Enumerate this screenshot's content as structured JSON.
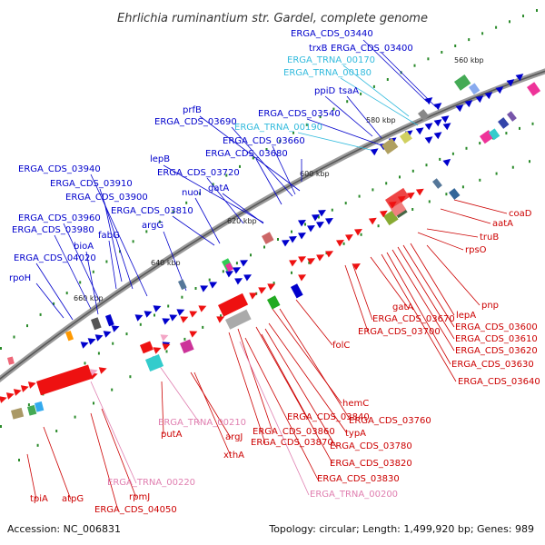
{
  "title": "Ehrlichia ruminantium str. Gardel, complete genome",
  "accession": "Accession: NC_006831",
  "topology": "Topology: circular; Length: 1,499,920 bp; Genes: 989",
  "colors": {
    "blue": "#0000cc",
    "red": "#cc0000",
    "pink": "#e07fb0",
    "cyan": "#33bbdd",
    "backbone": "#888888"
  },
  "kbp_ticks": [
    {
      "text": "560 kbp"
    },
    {
      "text": "580 kbp"
    },
    {
      "text": "600 kbp"
    },
    {
      "text": "620 kbp"
    },
    {
      "text": "640 kbp"
    },
    {
      "text": "660 kbp"
    }
  ],
  "labels": [
    {
      "text": "ERGA_CDS_03440",
      "kind": "blue"
    },
    {
      "text": "trxB",
      "kind": "blue"
    },
    {
      "text": "ERGA_CDS_03400",
      "kind": "blue"
    },
    {
      "text": "ERGA_TRNA_00170",
      "kind": "cyan"
    },
    {
      "text": "ERGA_TRNA_00180",
      "kind": "cyan"
    },
    {
      "text": "ppiD",
      "kind": "blue"
    },
    {
      "text": "tsaA",
      "kind": "blue"
    },
    {
      "text": "prfB",
      "kind": "blue"
    },
    {
      "text": "ERGA_CDS_03540",
      "kind": "blue"
    },
    {
      "text": "ERGA_CDS_03690",
      "kind": "blue"
    },
    {
      "text": "ERGA_TRNA_00190",
      "kind": "cyan"
    },
    {
      "text": "ERGA_CDS_03660",
      "kind": "blue"
    },
    {
      "text": "ERGA_CDS_03680",
      "kind": "blue"
    },
    {
      "text": "lepB",
      "kind": "blue"
    },
    {
      "text": "ERGA_CDS_03940",
      "kind": "blue"
    },
    {
      "text": "ERGA_CDS_03720",
      "kind": "blue"
    },
    {
      "text": "ERGA_CDS_03910",
      "kind": "blue"
    },
    {
      "text": "nuoI",
      "kind": "blue"
    },
    {
      "text": "gatA",
      "kind": "blue"
    },
    {
      "text": "ERGA_CDS_03900",
      "kind": "blue"
    },
    {
      "text": "ERGA_CDS_03810",
      "kind": "blue"
    },
    {
      "text": "ERGA_CDS_03960",
      "kind": "blue"
    },
    {
      "text": "ERGA_CDS_03980",
      "kind": "blue"
    },
    {
      "text": "fabG",
      "kind": "blue"
    },
    {
      "text": "argG",
      "kind": "blue"
    },
    {
      "text": "bioA",
      "kind": "blue"
    },
    {
      "text": "ERGA_CDS_04020",
      "kind": "blue"
    },
    {
      "text": "rpoH",
      "kind": "blue"
    },
    {
      "text": "coaD",
      "kind": "red"
    },
    {
      "text": "aatA",
      "kind": "red"
    },
    {
      "text": "truB",
      "kind": "red"
    },
    {
      "text": "rpsO",
      "kind": "red"
    },
    {
      "text": "pnp",
      "kind": "red"
    },
    {
      "text": "lepA",
      "kind": "red"
    },
    {
      "text": "ERGA_CDS_03600",
      "kind": "red"
    },
    {
      "text": "ERGA_CDS_03610",
      "kind": "red"
    },
    {
      "text": "ERGA_CDS_03620",
      "kind": "red"
    },
    {
      "text": "ERGA_CDS_03630",
      "kind": "red"
    },
    {
      "text": "ERGA_CDS_03640",
      "kind": "red"
    },
    {
      "text": "gatA",
      "kind": "red"
    },
    {
      "text": "ERGA_CDS_03670",
      "kind": "red"
    },
    {
      "text": "ERGA_CDS_03700",
      "kind": "red"
    },
    {
      "text": "folC",
      "kind": "red"
    },
    {
      "text": "hemC",
      "kind": "red"
    },
    {
      "text": "ERGA_CDS_03760",
      "kind": "red"
    },
    {
      "text": "ERGA_CDS_03840",
      "kind": "red"
    },
    {
      "text": "typA",
      "kind": "red"
    },
    {
      "text": "ERGA_CDS_03860",
      "kind": "red"
    },
    {
      "text": "ERGA_CDS_03780",
      "kind": "red"
    },
    {
      "text": "ERGA_CDS_03870",
      "kind": "red"
    },
    {
      "text": "ERGA_CDS_03820",
      "kind": "red"
    },
    {
      "text": "ERGA_CDS_03830",
      "kind": "red"
    },
    {
      "text": "ERGA_TRNA_00200",
      "kind": "pink"
    },
    {
      "text": "ERGA_TRNA_00210",
      "kind": "pink"
    },
    {
      "text": "putA",
      "kind": "red"
    },
    {
      "text": "argJ",
      "kind": "red"
    },
    {
      "text": "xthA",
      "kind": "red"
    },
    {
      "text": "ERGA_TRNA_00220",
      "kind": "pink"
    },
    {
      "text": "rpmJ",
      "kind": "red"
    },
    {
      "text": "tpiA",
      "kind": "red"
    },
    {
      "text": "atpG",
      "kind": "red"
    },
    {
      "text": "ERGA_CDS_04050",
      "kind": "red"
    }
  ]
}
